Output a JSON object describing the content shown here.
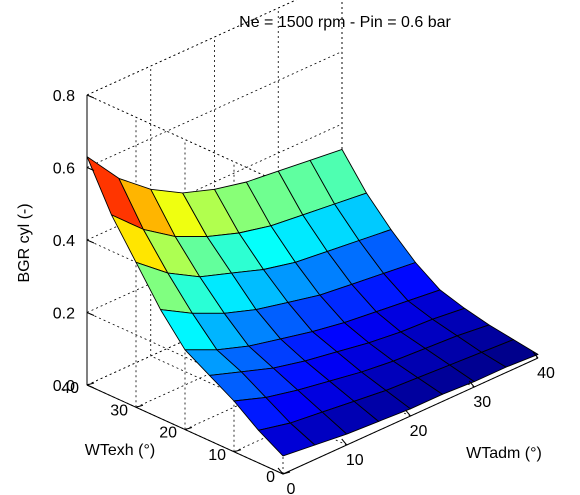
{
  "chart_data": {
    "type": "surface",
    "title": "Ne = 1500 rpm - Pin = 0.6 bar",
    "zlabel": "BGR cyl (-)",
    "xlabel": "WTadm (°)",
    "ylabel": "WTexh (°)",
    "xlim": [
      0,
      40
    ],
    "ylim": [
      0,
      40
    ],
    "zlim": [
      0,
      0.8
    ],
    "x_ticks": [
      "0",
      "10",
      "20",
      "30",
      "40"
    ],
    "y_ticks": [
      "0",
      "10",
      "20",
      "30",
      "40"
    ],
    "z_ticks": [
      "0.0",
      "0.2",
      "0.4",
      "0.6",
      "0.8"
    ],
    "colormap": "jet",
    "grid": true,
    "WTadm": [
      0,
      5,
      10,
      15,
      20,
      25,
      30,
      35,
      40
    ],
    "WTexh": [
      0,
      5,
      10,
      15,
      20,
      25,
      30,
      35,
      40
    ],
    "BGR_rows_by_WTexh": [
      [
        0.05,
        0.04,
        0.03,
        0.025,
        0.02,
        0.02,
        0.015,
        0.015,
        0.01
      ],
      [
        0.09,
        0.07,
        0.06,
        0.05,
        0.04,
        0.035,
        0.03,
        0.025,
        0.02
      ],
      [
        0.14,
        0.11,
        0.09,
        0.075,
        0.06,
        0.05,
        0.045,
        0.04,
        0.03
      ],
      [
        0.18,
        0.15,
        0.12,
        0.1,
        0.085,
        0.07,
        0.06,
        0.055,
        0.045
      ],
      [
        0.22,
        0.18,
        0.15,
        0.13,
        0.11,
        0.095,
        0.085,
        0.075,
        0.065
      ],
      [
        0.3,
        0.25,
        0.21,
        0.18,
        0.16,
        0.14,
        0.13,
        0.12,
        0.11
      ],
      [
        0.4,
        0.33,
        0.28,
        0.25,
        0.22,
        0.2,
        0.19,
        0.18,
        0.17
      ],
      [
        0.5,
        0.42,
        0.36,
        0.32,
        0.29,
        0.27,
        0.26,
        0.25,
        0.24
      ],
      [
        0.63,
        0.53,
        0.46,
        0.41,
        0.38,
        0.36,
        0.35,
        0.34,
        0.33
      ]
    ]
  }
}
